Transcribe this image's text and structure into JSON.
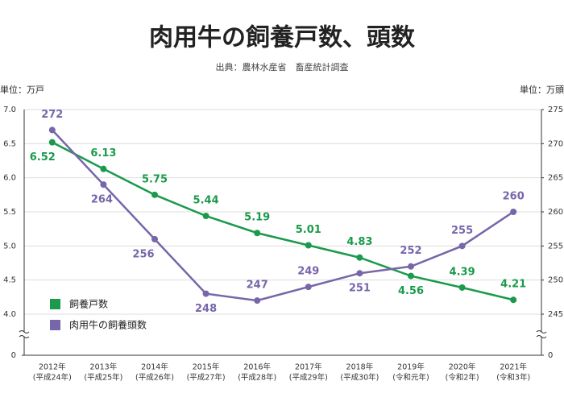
{
  "chart_data": {
    "type": "line",
    "title": "肉用牛の飼養戸数、頭数",
    "subtitle": "出典：農林水産省　畜産統計調査",
    "ylabel": "単位：万戸",
    "y2label": "単位：万頭",
    "categories": [
      "2012年",
      "2013年",
      "2014年",
      "2015年",
      "2016年",
      "2017年",
      "2018年",
      "2019年",
      "2020年",
      "2021年"
    ],
    "category_sublabels": [
      "(平成24年)",
      "(平成25年)",
      "(平成26年)",
      "(平成27年)",
      "(平成28年)",
      "(平成29年)",
      "(平成30年)",
      "(令和元年)",
      "(令和2年)",
      "(令和3年)"
    ],
    "series": [
      {
        "name": "飼養戸数",
        "color": "#1a9a4a",
        "values": [
          6.52,
          6.13,
          5.75,
          5.44,
          5.19,
          5.01,
          4.83,
          4.56,
          4.39,
          4.21
        ]
      },
      {
        "name": "肉用牛の飼養頭数",
        "color": "#7766aa",
        "axis": "y2",
        "values": [
          272,
          264,
          256,
          248,
          247,
          249,
          251,
          252,
          255,
          260
        ]
      }
    ],
    "ylim": [
      4.0,
      7.0
    ],
    "yticks": [
      0,
      {
        "value": 4.0,
        "label": "4.0"
      },
      4.5,
      {
        "value": 5.0,
        "label": "5.0"
      },
      5.5,
      {
        "value": 6.0,
        "label": "6.0"
      },
      6.5,
      {
        "value": 7.0,
        "label": "7.0"
      }
    ],
    "y2lim": [
      245,
      275
    ],
    "y2ticks": [
      0,
      245,
      250,
      255,
      260,
      265,
      270,
      275
    ],
    "axis_break": true,
    "grid": true,
    "legend": "lower left"
  }
}
